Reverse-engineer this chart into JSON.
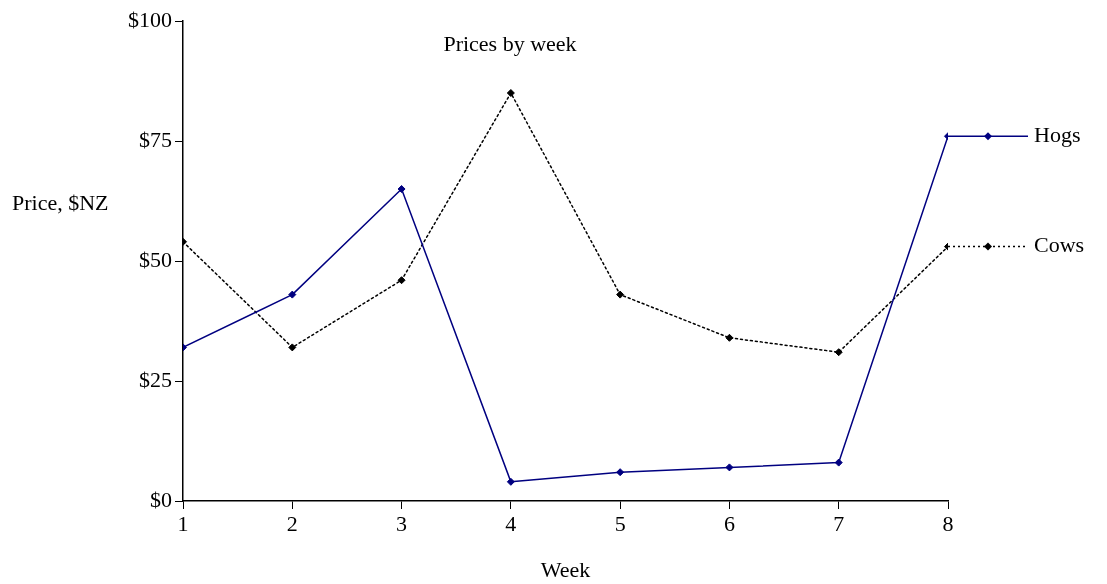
{
  "chart_data": {
    "type": "line",
    "title": "Prices by week",
    "xlabel": "Week",
    "ylabel": "Price, $NZ",
    "x": [
      1,
      2,
      3,
      4,
      5,
      6,
      7,
      8
    ],
    "series": [
      {
        "name": "Hogs",
        "color": "#000080",
        "values": [
          32,
          43,
          65,
          4,
          6,
          7,
          8,
          76
        ],
        "line_style": "solid"
      },
      {
        "name": "Cows",
        "color": "#000000",
        "values": [
          54,
          32,
          46,
          85,
          43,
          34,
          31,
          53
        ],
        "line_style": "dotted"
      }
    ],
    "xlim": [
      1,
      8
    ],
    "xticks": [
      1,
      2,
      3,
      4,
      5,
      6,
      7,
      8
    ],
    "ylim": [
      0,
      100
    ],
    "yticks": [
      {
        "value": 0,
        "label": "$0"
      },
      {
        "value": 25,
        "label": "$25"
      },
      {
        "value": 50,
        "label": "$50"
      },
      {
        "value": 75,
        "label": "$75"
      },
      {
        "value": 100,
        "label": "$100"
      }
    ],
    "grid": false,
    "legend": "right",
    "marker": "diamond"
  }
}
